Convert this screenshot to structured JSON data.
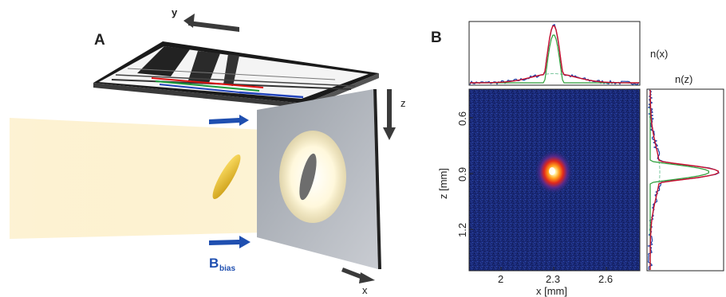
{
  "panel_a": {
    "label": "A",
    "axis_y": "y",
    "axis_z": "z",
    "axis_x": "x",
    "bias_main": "B",
    "bias_sub": "bias"
  },
  "panel_b": {
    "label": "B",
    "nx_label": "n(x)",
    "nz_label": "n(z)",
    "xlabel": "x [mm]",
    "ylabel": "z [mm]",
    "x_ticks": [
      "2",
      "2.3",
      "2.6"
    ],
    "z_ticks": [
      "0.6",
      "0.9",
      "1.2"
    ]
  },
  "colors": {
    "measured": "#1c3fa8",
    "fit_total": "#c8102e",
    "fit_condensate": "#2e9e3a",
    "fit_thermal": "#7ec8a0",
    "image_background": "#1a2a78"
  },
  "chart_data": {
    "type": "heatmap",
    "xlabel": "x [mm]",
    "ylabel": "z [mm]",
    "x_ticks": [
      2,
      2.3,
      2.6
    ],
    "z_ticks": [
      0.6,
      0.9,
      1.2
    ],
    "z_axis_inverted": true,
    "peak_position": {
      "x": 2.3,
      "z": 0.88
    },
    "profiles": [
      {
        "name": "n(x)"
      },
      {
        "name": "n(z)"
      }
    ]
  }
}
